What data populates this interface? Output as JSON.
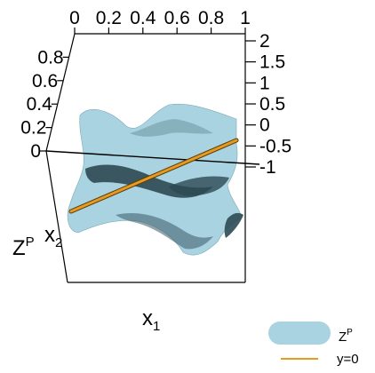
{
  "chart_data": {
    "type": "surface3d",
    "axes": {
      "x1": {
        "label": "x",
        "label_sub": "1",
        "range": [
          0,
          1
        ],
        "ticks": [
          "0",
          "0.2",
          "0.4",
          "0.6",
          "0.8",
          "1"
        ]
      },
      "x2": {
        "label": "x",
        "label_sub": "2",
        "range": [
          0,
          1
        ],
        "ticks": [
          "0",
          "0.2",
          "0.4",
          "0.6",
          "0.8"
        ]
      },
      "z": {
        "label": "Z",
        "label_sup": "P",
        "range": [
          -1,
          2
        ],
        "ticks": [
          "-1",
          "-0.5",
          "0",
          "0.5",
          "1",
          "1.5",
          "2"
        ]
      }
    },
    "series": [
      {
        "name": "Z",
        "name_sup": "P",
        "kind": "surface",
        "color": "#a9d3e0"
      },
      {
        "name": "y=0",
        "kind": "line",
        "color": "#e69a1f"
      }
    ],
    "legend_position": "bottom-right"
  }
}
